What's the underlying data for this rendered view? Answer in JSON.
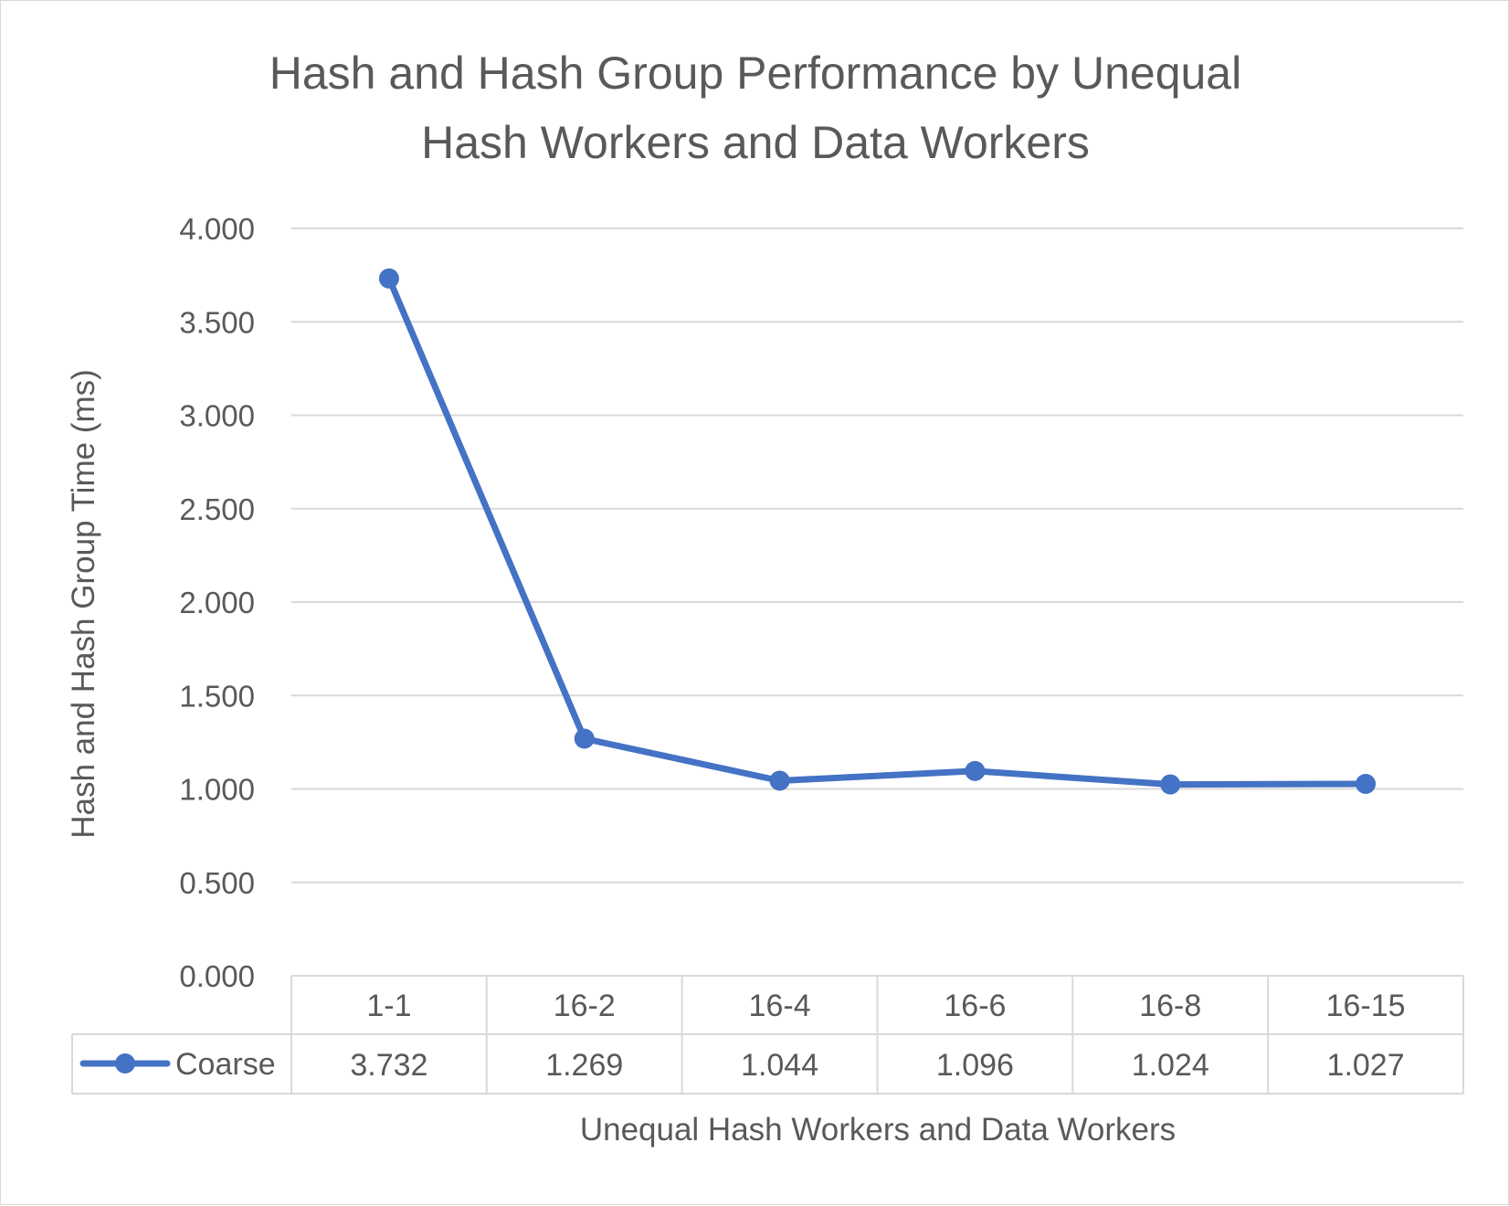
{
  "chart_data": {
    "type": "line",
    "title_lines": [
      "Hash and Hash Group Performance by Unequal",
      "Hash Workers and Data Workers"
    ],
    "xlabel": "Unequal Hash Workers and Data Workers",
    "ylabel": "Hash and Hash Group Time (ms)",
    "ylim": [
      0,
      4
    ],
    "y_ticks": [
      "0.000",
      "0.500",
      "1.000",
      "1.500",
      "2.000",
      "2.500",
      "3.000",
      "3.500",
      "4.000"
    ],
    "grid": true,
    "legend": "data-table",
    "categories": [
      "1-1",
      "16-2",
      "16-4",
      "16-6",
      "16-8",
      "16-15"
    ],
    "series": [
      {
        "name": "Coarse",
        "color": "#4472c4",
        "values": [
          3.732,
          1.269,
          1.044,
          1.096,
          1.024,
          1.027
        ],
        "labels": [
          "3.732",
          "1.269",
          "1.044",
          "1.096",
          "1.024",
          "1.027"
        ]
      }
    ]
  }
}
